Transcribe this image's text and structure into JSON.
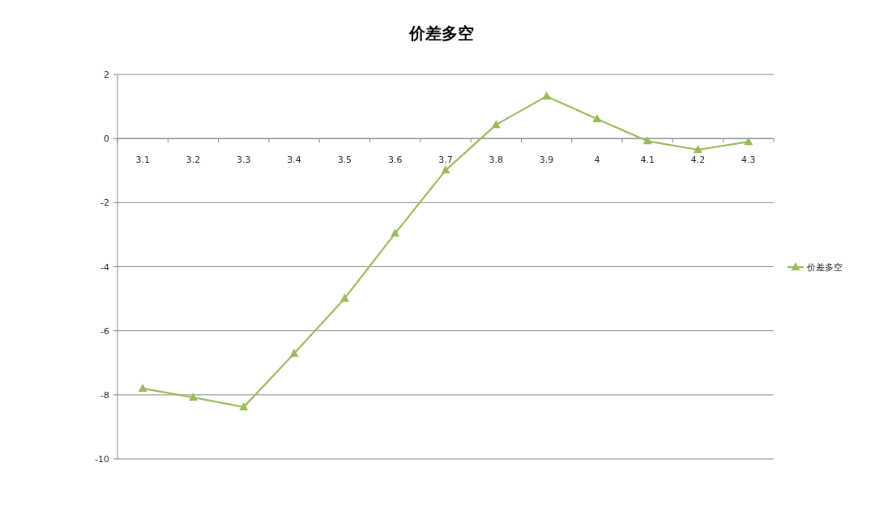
{
  "chart_data": {
    "type": "line",
    "title": "价差多空",
    "categories": [
      "3.1",
      "3.2",
      "3.3",
      "3.4",
      "3.5",
      "3.6",
      "3.7",
      "3.8",
      "3.9",
      "4",
      "4.1",
      "4.2",
      "4.3"
    ],
    "series": [
      {
        "name": "价差多空",
        "color": "#9bbb59",
        "values": [
          -7.8,
          -8.08,
          -8.38,
          -6.71,
          -4.99,
          -2.96,
          -0.99,
          0.43,
          1.32,
          0.61,
          -0.08,
          -0.35,
          -0.1
        ]
      }
    ],
    "ylim": [
      -10,
      2
    ],
    "yticks": [
      -10,
      -8,
      -6,
      -4,
      -2,
      0,
      2
    ],
    "grid": "y",
    "legend": "right",
    "marker": "triangle",
    "line_style": "solid"
  }
}
